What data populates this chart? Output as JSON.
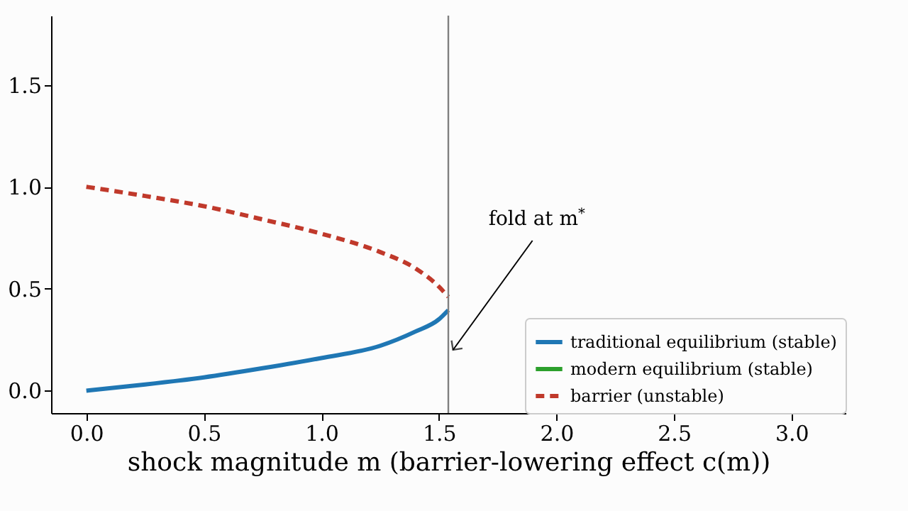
{
  "chart_data": {
    "type": "line",
    "xlabel": "shock magnitude m (barrier-lowering effect c(m))",
    "annotations": [
      {
        "text": "fold at m$^{*}$",
        "x": 1.56,
        "y": 0.2
      }
    ],
    "x": [
      0,
      0.25,
      0.5,
      0.75,
      1.0,
      1.25,
      1.4,
      1.5,
      1.54
    ],
    "series": [
      {
        "name": "traditional equilibrium (stable)",
        "color": "#1f77b4",
        "line_style": "solid",
        "values": [
          0,
          0.03,
          0.065,
          0.11,
          0.16,
          0.22,
          0.29,
          0.35,
          0.395
        ]
      },
      {
        "name": "modern equilibrium (stable)",
        "color": "#2ca02c",
        "line_style": "solid",
        "values": [
          null,
          null,
          null,
          null,
          null,
          null,
          null,
          null,
          null
        ]
      },
      {
        "name": "barrier (unstable)",
        "color": "#c0392b",
        "line_style": "dashed",
        "values": [
          1.0,
          0.955,
          0.905,
          0.84,
          0.77,
          0.68,
          0.6,
          0.51,
          0.46
        ]
      }
    ],
    "ref_lines": [
      {
        "axis": "x",
        "value": 1.54,
        "color": "#808080"
      }
    ],
    "xlim": [
      -0.15,
      3.23
    ],
    "ylim": [
      -0.11,
      1.84
    ],
    "xticks": [
      {
        "value": 0,
        "label": "0.0"
      },
      0.5,
      {
        "value": 1,
        "label": "1.0"
      },
      1.5,
      {
        "value": 2,
        "label": "2.0"
      },
      2.5,
      {
        "value": 3,
        "label": "3.0"
      }
    ],
    "yticks": [
      {
        "value": 0,
        "label": "0.0"
      },
      0.5,
      {
        "value": 1,
        "label": "1.0"
      },
      1.5
    ],
    "legend": "bottom right",
    "grid": false
  }
}
